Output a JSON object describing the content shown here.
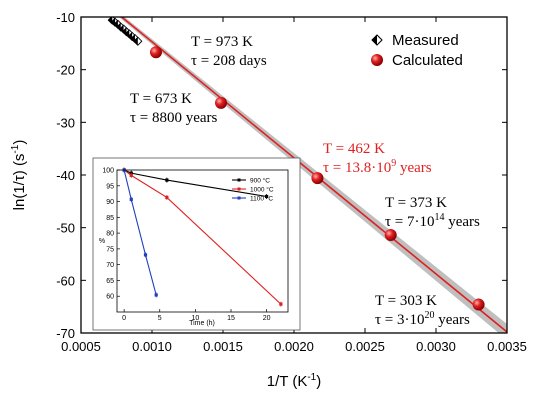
{
  "colors": {
    "calculated": "#e02020",
    "fit_band": "#b4b4b4",
    "annotation_default": "#000000",
    "annotation_highlight": "#e02020",
    "inset_900": "#000000",
    "inset_1000": "#e02020",
    "inset_1100": "#1f3fbf"
  },
  "chart_data": [
    {
      "type": "scatter",
      "xlabel": "1/T (K⁻¹)",
      "xlabel_base": "1/T (K",
      "xlabel_sup": "-1",
      "xlabel_tail": ")",
      "ylabel": "ln(1/τ) (s⁻¹)",
      "ylabel_base": "ln(1/τ) (s",
      "ylabel_sup": "-1",
      "ylabel_tail": ")",
      "xlim": [
        0.0005,
        0.0035
      ],
      "ylim": [
        -70,
        -10
      ],
      "xticks": [
        "0.0005",
        "0.0010",
        "0.0015",
        "0.0020",
        "0.0025",
        "0.0030",
        "0.0035"
      ],
      "yticks": [
        "-10",
        "-20",
        "-30",
        "-40",
        "-50",
        "-60",
        "-70"
      ],
      "legend_position": "top-right",
      "fit_line": {
        "x": [
          0.00065,
          0.0035
        ],
        "y": [
          -7.0,
          -69.8
        ]
      },
      "series": [
        {
          "name": "Measured",
          "marker": "half-filled diamond",
          "x": [
            0.00072,
            0.00074,
            0.00076,
            0.00078,
            0.0008,
            0.00082,
            0.00084,
            0.00086,
            0.00088,
            0.0009
          ],
          "y": [
            -10.6,
            -11.0,
            -11.4,
            -11.9,
            -12.3,
            -12.8,
            -13.2,
            -13.7,
            -14.1,
            -14.6
          ]
        },
        {
          "name": "Calculated",
          "marker": "red sphere",
          "x": [
            0.001028,
            0.001486,
            0.002165,
            0.002681,
            0.0033
          ],
          "y": [
            -16.7,
            -26.3,
            -40.6,
            -51.4,
            -64.6
          ]
        }
      ],
      "annotations": [
        {
          "t_line": "T = 973 K",
          "tau_base": "τ = 208 days",
          "tau_exp": "",
          "tau_unit": "",
          "color": "default"
        },
        {
          "t_line": "T = 673 K",
          "tau_base": "τ = 8800 years",
          "tau_exp": "",
          "tau_unit": "",
          "color": "default"
        },
        {
          "t_line": "T = 462 K",
          "tau_base": "τ = 13.8·10",
          "tau_exp": "9",
          "tau_unit": " years",
          "color": "highlight"
        },
        {
          "t_line": "T = 373 K",
          "tau_base": "τ = 7·10",
          "tau_exp": "14",
          "tau_unit": " years",
          "color": "default"
        },
        {
          "t_line": "T = 303 K",
          "tau_base": "τ = 3·10",
          "tau_exp": "20",
          "tau_unit": " years",
          "color": "default"
        }
      ]
    },
    {
      "type": "line",
      "xlabel": "Time (h)",
      "ylabel": "%",
      "xlim": [
        -1,
        23
      ],
      "ylim": [
        55,
        100
      ],
      "xticks": [
        "0",
        "5",
        "10",
        "15",
        "20"
      ],
      "yticks": [
        "100",
        "95",
        "90",
        "85",
        "80",
        "75",
        "70",
        "65",
        "60"
      ],
      "legend_position": "top-right",
      "series": [
        {
          "name": "900 °C",
          "x": [
            0,
            1,
            6,
            20
          ],
          "y": [
            100,
            99,
            96.8,
            91.6
          ],
          "color_key": "inset_900"
        },
        {
          "name": "1000 °C",
          "x": [
            0,
            1,
            6,
            22
          ],
          "y": [
            100,
            98.3,
            91.3,
            57.5
          ],
          "color_key": "inset_1000"
        },
        {
          "name": "1100 °C",
          "x": [
            0,
            1,
            3,
            4.5
          ],
          "y": [
            100,
            90.7,
            73.1,
            60.4
          ],
          "color_key": "inset_1100"
        }
      ]
    }
  ]
}
